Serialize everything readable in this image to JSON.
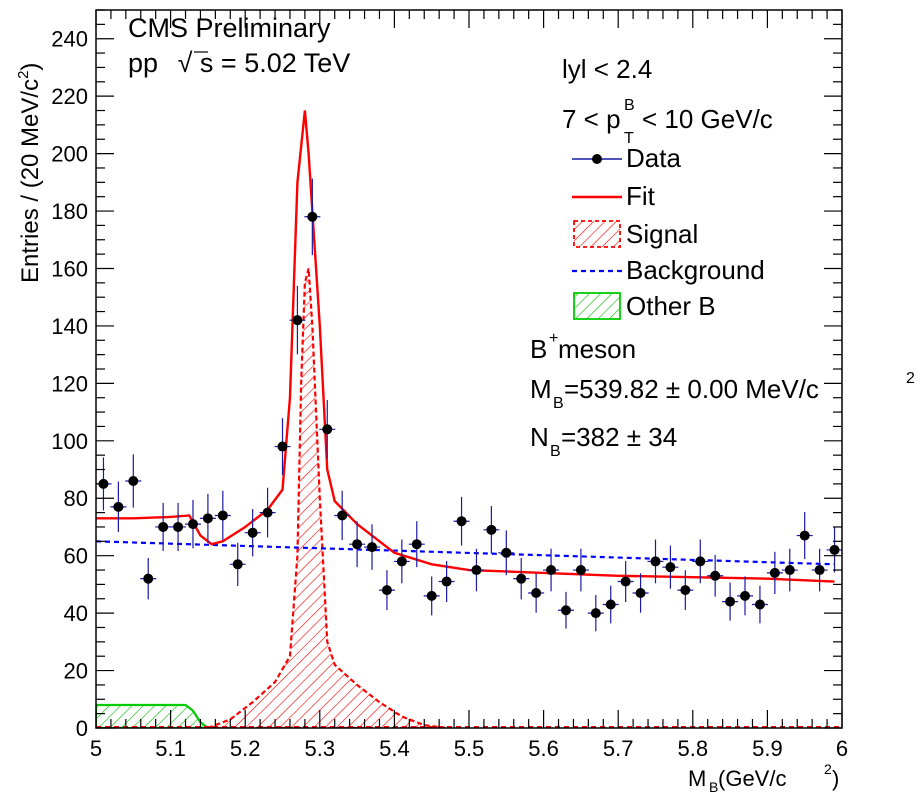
{
  "chart_data": {
    "type": "scatter",
    "header": {
      "experiment": "CMS Preliminary",
      "energy_prefix": "pp",
      "sqrt": "√",
      "energy_s": "s",
      "energy_value": " = 5.02 TeV"
    },
    "selection": {
      "rapidity": "lyl < 2.4",
      "pt_lo": "7 < p",
      "pt_sup": "B",
      "pt_sub": "T",
      "pt_hi": "< 10 GeV/c"
    },
    "xlabel": {
      "main": "M",
      "sub": "B",
      "unit": " (GeV/c",
      "sup": "2",
      "close": ")"
    },
    "ylabel": {
      "main": "Entries / (20 MeV/c",
      "sup": "2",
      "close": ")"
    },
    "xlim": [
      5.0,
      6.0
    ],
    "ylim": [
      0,
      250
    ],
    "x_ticks": [
      5.0,
      5.1,
      5.2,
      5.3,
      5.4,
      5.5,
      5.6,
      5.7,
      5.8,
      5.9,
      6.0
    ],
    "x_tick_labels": [
      "5",
      "5.1",
      "5.2",
      "5.3",
      "5.4",
      "5.5",
      "5.6",
      "5.7",
      "5.8",
      "5.9",
      "6"
    ],
    "y_ticks": [
      0,
      20,
      40,
      60,
      80,
      100,
      120,
      140,
      160,
      180,
      200,
      220,
      240
    ],
    "y_tick_labels": [
      "0",
      "20",
      "40",
      "60",
      "80",
      "100",
      "120",
      "140",
      "160",
      "180",
      "200",
      "220",
      "240"
    ],
    "legend": {
      "position": "top-right",
      "entries": [
        {
          "name": "Data",
          "kind": "marker",
          "color": "#000000",
          "line_color": "#1a1aa6"
        },
        {
          "name": "Fit",
          "kind": "line",
          "color": "#ff0000"
        },
        {
          "name": "Signal",
          "kind": "hatch",
          "color": "#ff0000"
        },
        {
          "name": "Background",
          "kind": "dashed",
          "color": "#0000ff"
        },
        {
          "name": "Other B",
          "kind": "hatch",
          "color": "#00cc00"
        }
      ]
    },
    "results": {
      "meson": "B",
      "meson_sup": "+",
      "meson_suffix": " meson",
      "mass_label": "M",
      "mass_sub": "B",
      "mass_value": "=539.82 ± 0.00 MeV/c",
      "mass_sup": "2",
      "yield_label": "N",
      "yield_sub": "B",
      "yield_value": "=382 ± 34"
    },
    "series": [
      {
        "name": "Data",
        "kind": "points",
        "color": "#000000",
        "error_color": "#1a1aa6",
        "x": [
          5.01,
          5.03,
          5.05,
          5.07,
          5.09,
          5.11,
          5.13,
          5.15,
          5.17,
          5.19,
          5.21,
          5.23,
          5.25,
          5.27,
          5.29,
          5.31,
          5.33,
          5.35,
          5.37,
          5.39,
          5.41,
          5.43,
          5.45,
          5.47,
          5.49,
          5.51,
          5.53,
          5.55,
          5.57,
          5.59,
          5.61,
          5.63,
          5.65,
          5.67,
          5.69,
          5.71,
          5.73,
          5.75,
          5.77,
          5.79,
          5.81,
          5.83,
          5.85,
          5.87,
          5.89,
          5.91,
          5.93,
          5.95,
          5.97,
          5.99
        ],
        "y": [
          85,
          77,
          86,
          52,
          70,
          70,
          71,
          73,
          74,
          57,
          68,
          75,
          98,
          142,
          178,
          104,
          74,
          64,
          63,
          48,
          58,
          64,
          46,
          51,
          72,
          55,
          69,
          61,
          52,
          47,
          55,
          41,
          55,
          40,
          43,
          51,
          47,
          58,
          56,
          48,
          58,
          53,
          44,
          46,
          43,
          54,
          55,
          67,
          55,
          62
        ]
      },
      {
        "name": "Fit",
        "kind": "line",
        "color": "#ff0000",
        "x": [
          5.0,
          5.05,
          5.1,
          5.125,
          5.14,
          5.155,
          5.17,
          5.2,
          5.23,
          5.25,
          5.26,
          5.27,
          5.28,
          5.285,
          5.29,
          5.3,
          5.31,
          5.32,
          5.35,
          5.4,
          5.45,
          5.5,
          5.6,
          5.7,
          5.8,
          5.9,
          5.99
        ],
        "y": [
          73,
          73,
          73.5,
          74,
          67,
          64,
          65,
          70,
          76,
          83,
          115,
          190,
          215,
          200,
          180,
          140,
          90,
          79,
          71,
          61,
          57,
          55,
          54,
          53,
          52.5,
          52,
          51
        ]
      },
      {
        "name": "Signal",
        "kind": "hatched-area",
        "color": "#ff0000",
        "x": [
          5.15,
          5.18,
          5.21,
          5.24,
          5.26,
          5.27,
          5.275,
          5.28,
          5.285,
          5.29,
          5.3,
          5.31,
          5.32,
          5.35,
          5.38,
          5.41,
          5.44,
          5.47
        ],
        "y": [
          0,
          3,
          9,
          16,
          25,
          60,
          120,
          155,
          160,
          140,
          80,
          30,
          22,
          15,
          9,
          4,
          1,
          0
        ]
      },
      {
        "name": "Background",
        "kind": "dashed-line",
        "color": "#0000ff",
        "x": [
          5.0,
          5.99
        ],
        "y": [
          65,
          57
        ]
      },
      {
        "name": "Other B",
        "kind": "hatched-area",
        "color": "#00cc00",
        "x": [
          5.0,
          5.12,
          5.13,
          5.14,
          5.15
        ],
        "y": [
          8,
          8,
          6,
          2,
          0
        ]
      }
    ]
  }
}
